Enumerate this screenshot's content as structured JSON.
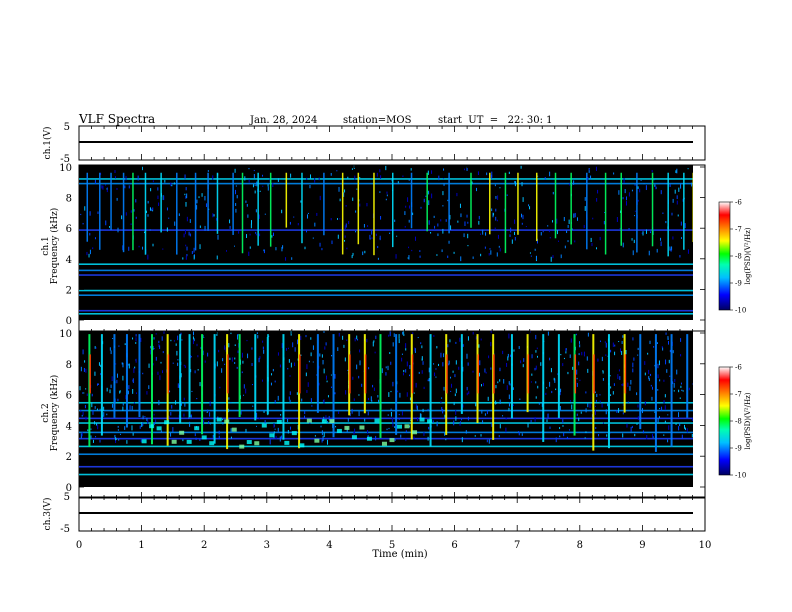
{
  "header": {
    "title": "VLF Spectra",
    "date": "Jan. 28, 2024",
    "station": "station=MOS",
    "start": "start  UT  =   22: 30: 1"
  },
  "chart_data": [
    {
      "type": "line",
      "name_label": "ch.1(V)",
      "ylim": [
        -5,
        5
      ],
      "yticks": [
        "5",
        "-5"
      ],
      "x_range": [
        0,
        10
      ],
      "series": [
        {
          "values": [
            [
              0,
              0
            ],
            [
              9.83,
              0
            ]
          ]
        }
      ]
    },
    {
      "type": "heatmap",
      "ylabel": "ch.1\nFrequency (kHz)",
      "ylim": [
        0,
        10
      ],
      "yticks": [
        "0",
        "2",
        "4",
        "6",
        "8",
        "10"
      ],
      "x_range": [
        0,
        9.83
      ],
      "colorbar": {
        "label": "log(PSD)(V²/Hz)",
        "range": [
          -10,
          -6
        ],
        "ticks": [
          "-6",
          "-7",
          "-8",
          "-9",
          "-10"
        ]
      },
      "bands_khz": [
        0.4,
        0.6,
        1.6,
        1.9,
        2.9,
        3.2,
        3.6,
        5.8,
        8.8,
        9.1
      ],
      "bursts_min": [
        0.12,
        0.32,
        0.5,
        0.7,
        0.85,
        1.05,
        1.3,
        1.55,
        1.85,
        2.05,
        2.2,
        2.45,
        2.6,
        2.85,
        3.05,
        3.3,
        3.55,
        3.9,
        4.2,
        4.45,
        4.7,
        5.0,
        5.3,
        5.55,
        5.9,
        6.25,
        6.55,
        6.8,
        7.0,
        7.3,
        7.6,
        7.85,
        8.1,
        8.4,
        8.65,
        8.9,
        9.15,
        9.4,
        9.65,
        9.8
      ]
    },
    {
      "type": "heatmap",
      "ylabel": "ch.2\nFrequency (kHz)",
      "ylim": [
        0,
        10
      ],
      "yticks": [
        "0",
        "2",
        "4",
        "6",
        "8",
        "10"
      ],
      "x_range": [
        0,
        9.83
      ],
      "colorbar": {
        "label": "log(PSD)(V²/Hz)",
        "range": [
          -10,
          -6
        ],
        "ticks": [
          "-6",
          "-7",
          "-8",
          "-9",
          "-10"
        ]
      },
      "bands_khz": [
        0.8,
        1.3,
        2.1,
        2.6,
        3.1,
        3.5,
        4.1,
        4.4,
        4.9,
        5.4
      ],
      "bursts_min": [
        0.15,
        0.35,
        0.55,
        0.75,
        0.95,
        1.15,
        1.4,
        1.6,
        1.75,
        1.95,
        2.15,
        2.35,
        2.55,
        2.8,
        3.0,
        3.25,
        3.5,
        3.8,
        4.05,
        4.3,
        4.55,
        4.8,
        5.05,
        5.3,
        5.6,
        5.85,
        6.1,
        6.35,
        6.6,
        6.9,
        7.15,
        7.4,
        7.65,
        7.9,
        8.2,
        8.45,
        8.7,
        8.95,
        9.2,
        9.45,
        9.7
      ]
    },
    {
      "type": "line",
      "name_label": "ch.3(V)",
      "ylim": [
        -5,
        5
      ],
      "yticks": [
        "5",
        "-5"
      ],
      "x_range": [
        0,
        10
      ],
      "xlabel": "Time (min)",
      "xticks": [
        "0",
        "1",
        "2",
        "3",
        "4",
        "5",
        "6",
        "7",
        "8",
        "9",
        "10"
      ],
      "series": [
        {
          "values": [
            [
              0,
              0
            ],
            [
              9.83,
              0
            ]
          ]
        }
      ]
    }
  ],
  "colors": {
    "background": "#000000",
    "colormap": [
      "#000080",
      "#0000ff",
      "#0080ff",
      "#00ffff",
      "#00ff00",
      "#ffff00",
      "#ff8000",
      "#ff0000",
      "#ffffff"
    ]
  }
}
